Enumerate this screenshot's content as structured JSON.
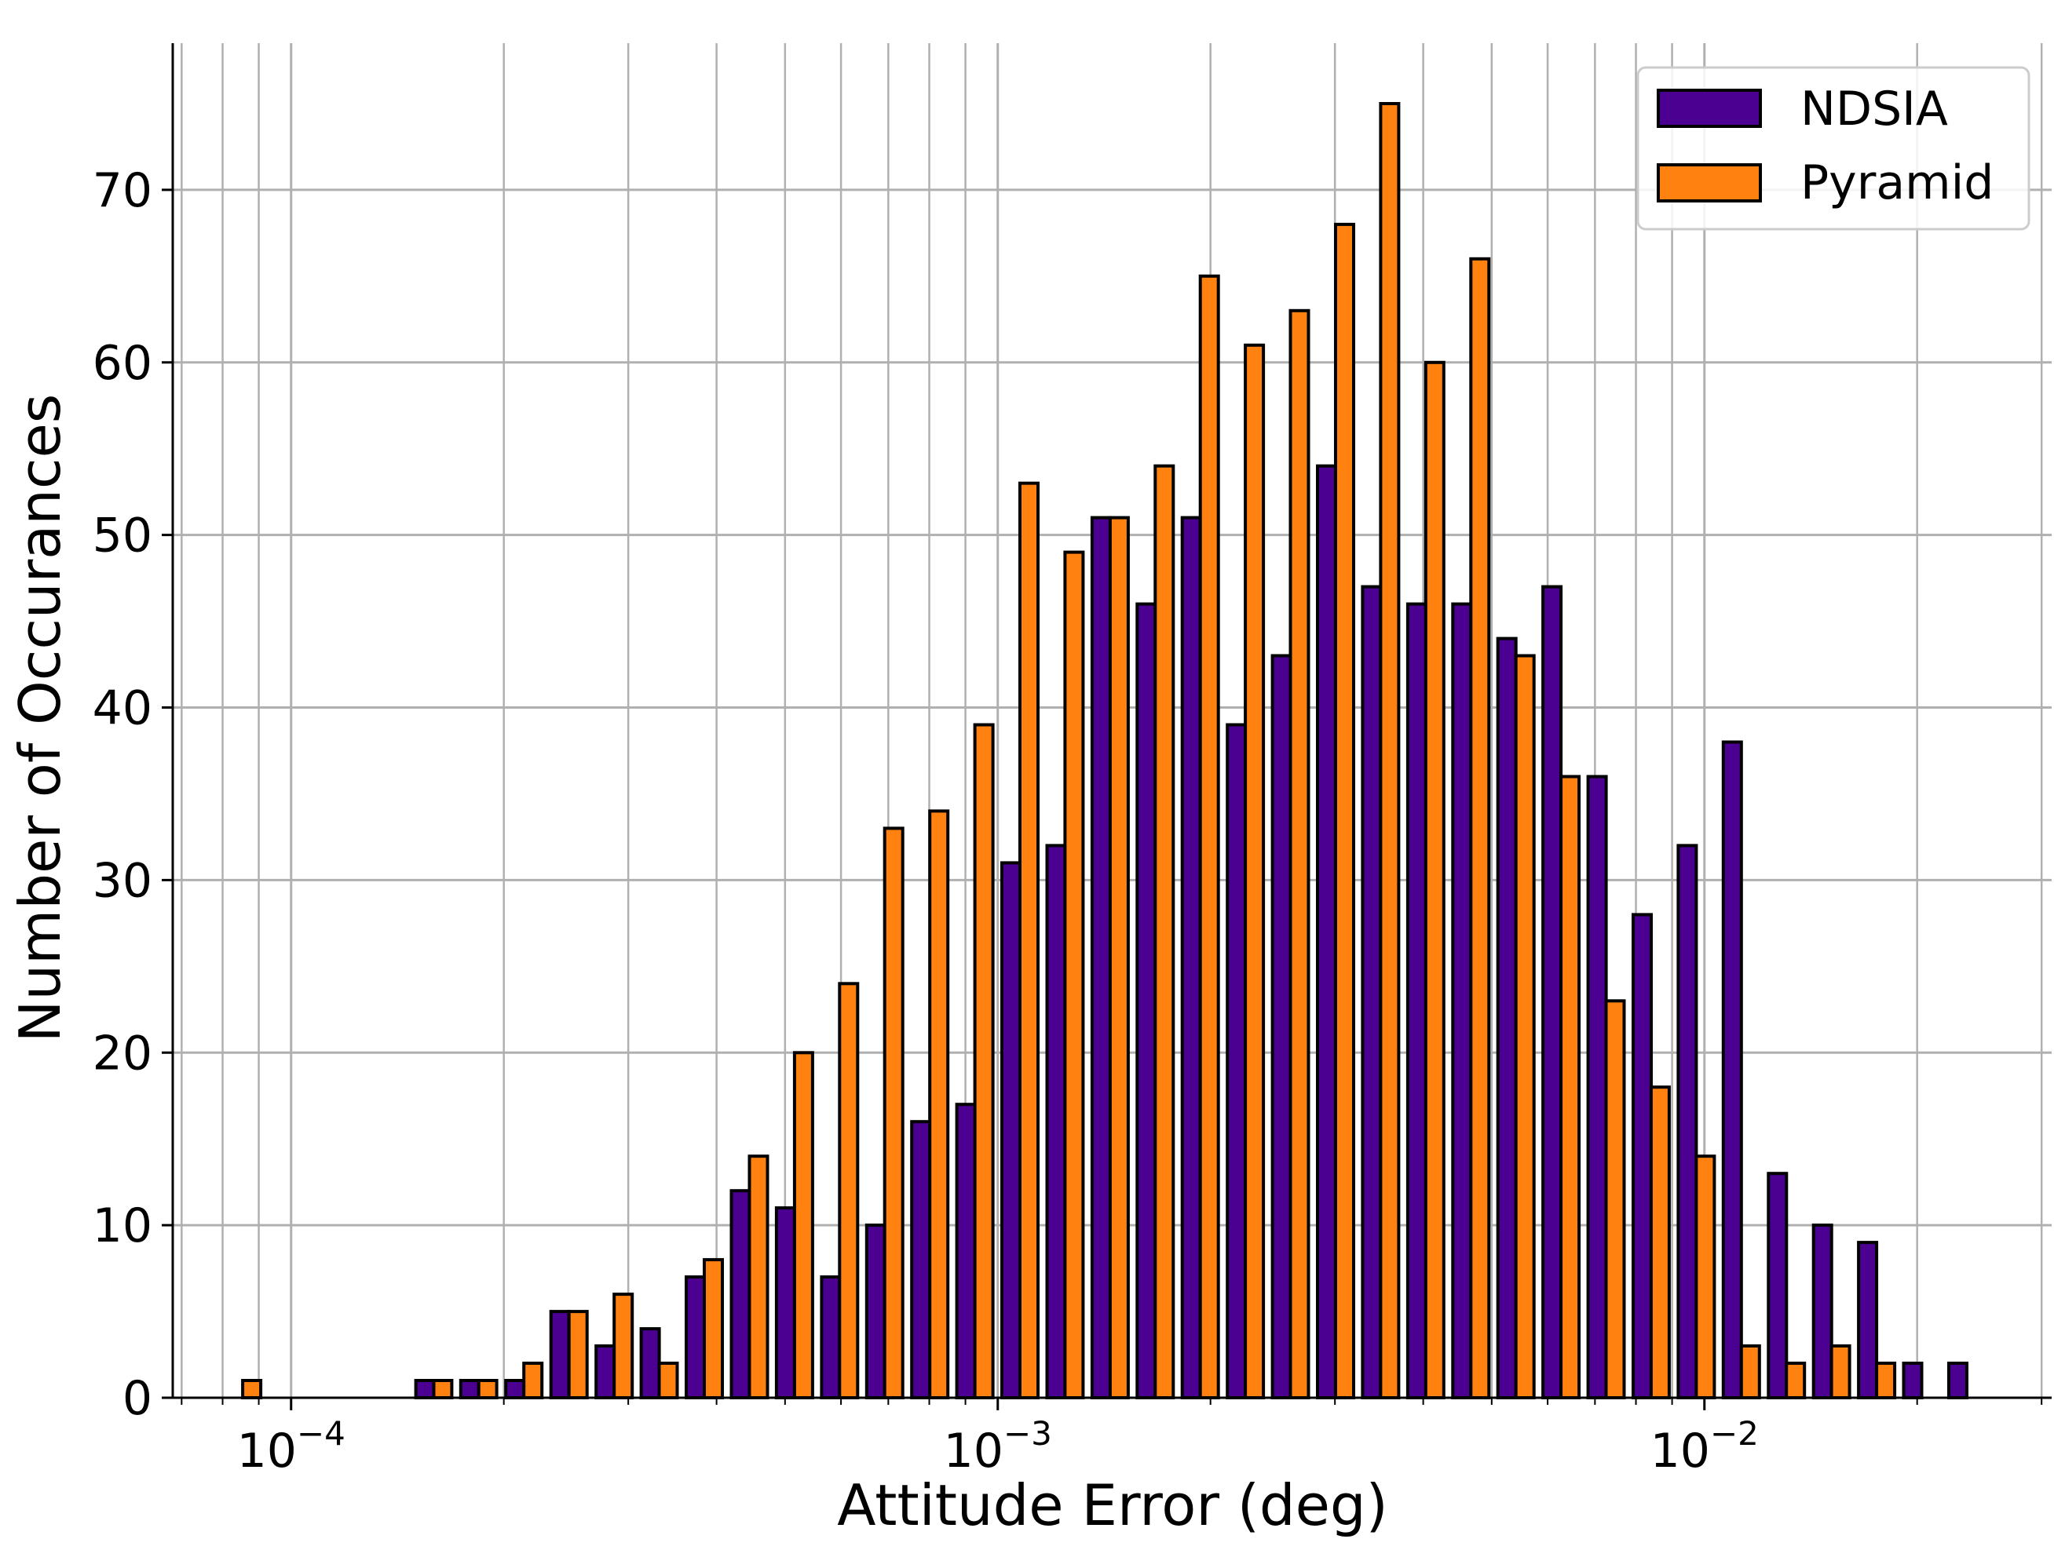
{
  "chart_data": {
    "type": "bar",
    "x_scale": "log",
    "xlabel": "Attitude Error (deg)",
    "ylabel": "Number of Occurances",
    "xlim": [
      6.8e-05,
      0.031
    ],
    "ylim": [
      0,
      78.5
    ],
    "yticks": [
      0,
      10,
      20,
      30,
      40,
      50,
      60,
      70
    ],
    "xticks": [
      {
        "value": 0.0001,
        "base": "10",
        "exponent": "−4"
      },
      {
        "value": 0.001,
        "base": "10",
        "exponent": "−3"
      },
      {
        "value": 0.01,
        "base": "10",
        "exponent": "−2"
      }
    ],
    "grid": true,
    "legend_position": "top-right",
    "series": [
      {
        "name": "NDSIA",
        "color": "#4b0092",
        "bins": [
          [
            8.54e-05,
            0
          ],
          [
            0.0001592,
            1
          ],
          [
            0.0001843,
            1
          ],
          [
            0.0002135,
            1
          ],
          [
            0.0002473,
            5
          ],
          [
            0.0002865,
            3
          ],
          [
            0.0003318,
            4
          ],
          [
            0.0003843,
            7
          ],
          [
            0.0004452,
            12
          ],
          [
            0.0005157,
            11
          ],
          [
            0.0005973,
            7
          ],
          [
            0.0006918,
            10
          ],
          [
            0.0008013,
            16
          ],
          [
            0.0009281,
            17
          ],
          [
            0.0010749,
            31
          ],
          [
            0.0012451,
            32
          ],
          [
            0.0014421,
            51
          ],
          [
            0.0016703,
            46
          ],
          [
            0.0019346,
            51
          ],
          [
            0.0022408,
            39
          ],
          [
            0.0025954,
            43
          ],
          [
            0.0030062,
            54
          ],
          [
            0.0034819,
            47
          ],
          [
            0.004033,
            46
          ],
          [
            0.0046712,
            46
          ],
          [
            0.0054105,
            44
          ],
          [
            0.0062667,
            47
          ],
          [
            0.0072584,
            36
          ],
          [
            0.0084071,
            28
          ],
          [
            0.0097376,
            32
          ],
          [
            0.0112786,
            38
          ],
          [
            0.0130635,
            13
          ],
          [
            0.0151309,
            10
          ],
          [
            0.0175254,
            9
          ],
          [
            0.0202989,
            2
          ],
          [
            0.0235113,
            2
          ]
        ]
      },
      {
        "name": "Pyramid",
        "color": "#ff8210",
        "bins": [
          [
            8.54e-05,
            1
          ],
          [
            0.0001592,
            1
          ],
          [
            0.0001843,
            1
          ],
          [
            0.0002135,
            2
          ],
          [
            0.0002473,
            5
          ],
          [
            0.0002865,
            6
          ],
          [
            0.0003318,
            2
          ],
          [
            0.0003843,
            8
          ],
          [
            0.0004452,
            14
          ],
          [
            0.0005157,
            20
          ],
          [
            0.0005973,
            24
          ],
          [
            0.0006918,
            33
          ],
          [
            0.0008013,
            34
          ],
          [
            0.0009281,
            39
          ],
          [
            0.0010749,
            53
          ],
          [
            0.0012451,
            49
          ],
          [
            0.0014421,
            51
          ],
          [
            0.0016703,
            54
          ],
          [
            0.0019346,
            65
          ],
          [
            0.0022408,
            61
          ],
          [
            0.0025954,
            63
          ],
          [
            0.0030062,
            68
          ],
          [
            0.0034819,
            75
          ],
          [
            0.004033,
            60
          ],
          [
            0.0046712,
            66
          ],
          [
            0.0054105,
            43
          ],
          [
            0.0062667,
            36
          ],
          [
            0.0072584,
            23
          ],
          [
            0.0084071,
            18
          ],
          [
            0.0097376,
            14
          ],
          [
            0.0112786,
            3
          ],
          [
            0.0130635,
            2
          ],
          [
            0.0151309,
            3
          ],
          [
            0.0175254,
            2
          ],
          [
            0.0202989,
            0
          ],
          [
            0.0235113,
            0
          ]
        ]
      }
    ]
  }
}
